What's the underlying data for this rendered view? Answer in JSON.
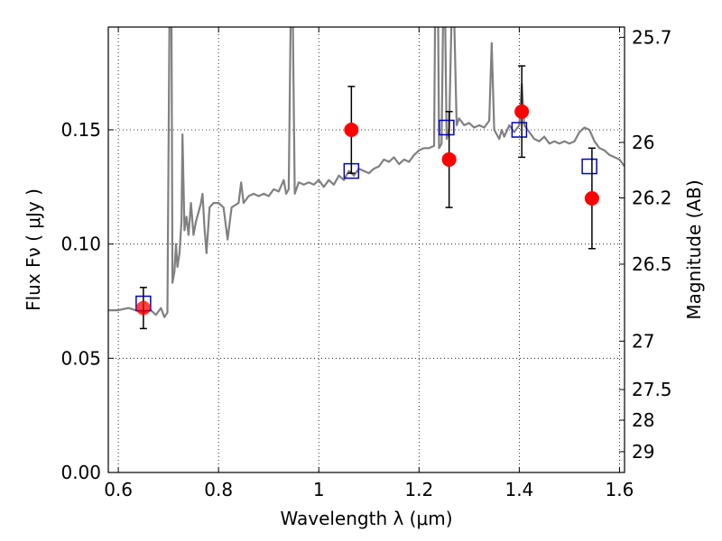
{
  "chart_data": {
    "type": "scatter",
    "xlabel": "Wavelength  λ (μm)",
    "ylabel": "Flux  Fν  ( μJy )",
    "ylabel_right": "Magnitude (AB)",
    "xlim": [
      0.58,
      1.61
    ],
    "ylim": [
      0.0,
      0.195
    ],
    "grid": true,
    "grid_style": "dotted",
    "x_ticks": [
      {
        "value": 0.6,
        "label": "0.6"
      },
      {
        "value": 0.8,
        "label": "0.8"
      },
      {
        "value": 1.0,
        "label": "1"
      },
      {
        "value": 1.2,
        "label": "1.2"
      },
      {
        "value": 1.4,
        "label": "1.4"
      },
      {
        "value": 1.6,
        "label": "1.6"
      }
    ],
    "y_ticks": [
      {
        "value": 0.0,
        "label": "0.00"
      },
      {
        "value": 0.05,
        "label": "0.05"
      },
      {
        "value": 0.1,
        "label": "0.10"
      },
      {
        "value": 0.15,
        "label": "0.15"
      }
    ],
    "right_ticks": [
      {
        "flux": 0.1905,
        "label": "25.7"
      },
      {
        "flux": 0.1445,
        "label": "26"
      },
      {
        "flux": 0.1202,
        "label": "26.2"
      },
      {
        "flux": 0.0912,
        "label": "26.5"
      },
      {
        "flux": 0.0575,
        "label": "27"
      },
      {
        "flux": 0.0363,
        "label": "27.5"
      },
      {
        "flux": 0.0229,
        "label": "28"
      },
      {
        "flux": 0.0091,
        "label": "29"
      }
    ],
    "series": [
      {
        "kind": "model_spectrum",
        "color": "#808080",
        "points": [
          [
            0.58,
            0.071
          ],
          [
            0.6,
            0.071
          ],
          [
            0.62,
            0.072
          ],
          [
            0.635,
            0.071
          ],
          [
            0.65,
            0.07
          ],
          [
            0.665,
            0.071
          ],
          [
            0.675,
            0.069
          ],
          [
            0.685,
            0.072
          ],
          [
            0.692,
            0.068
          ],
          [
            0.698,
            0.07
          ],
          [
            0.702,
            0.2
          ],
          [
            0.706,
            0.2
          ],
          [
            0.708,
            0.083
          ],
          [
            0.712,
            0.088
          ],
          [
            0.715,
            0.1
          ],
          [
            0.718,
            0.09
          ],
          [
            0.722,
            0.096
          ],
          [
            0.726,
            0.11
          ],
          [
            0.728,
            0.148
          ],
          [
            0.732,
            0.106
          ],
          [
            0.736,
            0.112
          ],
          [
            0.74,
            0.104
          ],
          [
            0.745,
            0.118
          ],
          [
            0.75,
            0.104
          ],
          [
            0.755,
            0.11
          ],
          [
            0.76,
            0.114
          ],
          [
            0.765,
            0.118
          ],
          [
            0.768,
            0.122
          ],
          [
            0.772,
            0.107
          ],
          [
            0.776,
            0.096
          ],
          [
            0.782,
            0.116
          ],
          [
            0.79,
            0.118
          ],
          [
            0.8,
            0.118
          ],
          [
            0.81,
            0.116
          ],
          [
            0.818,
            0.102
          ],
          [
            0.826,
            0.116
          ],
          [
            0.84,
            0.118
          ],
          [
            0.845,
            0.127
          ],
          [
            0.85,
            0.118
          ],
          [
            0.86,
            0.121
          ],
          [
            0.87,
            0.122
          ],
          [
            0.88,
            0.121
          ],
          [
            0.89,
            0.122
          ],
          [
            0.9,
            0.121
          ],
          [
            0.91,
            0.124
          ],
          [
            0.92,
            0.123
          ],
          [
            0.93,
            0.128
          ],
          [
            0.935,
            0.122
          ],
          [
            0.94,
            0.124
          ],
          [
            0.944,
            0.2
          ],
          [
            0.948,
            0.2
          ],
          [
            0.952,
            0.122
          ],
          [
            0.96,
            0.127
          ],
          [
            0.97,
            0.126
          ],
          [
            0.98,
            0.127
          ],
          [
            0.99,
            0.126
          ],
          [
            1.0,
            0.128
          ],
          [
            1.01,
            0.125
          ],
          [
            1.02,
            0.128
          ],
          [
            1.03,
            0.126
          ],
          [
            1.04,
            0.13
          ],
          [
            1.05,
            0.128
          ],
          [
            1.06,
            0.132
          ],
          [
            1.07,
            0.13
          ],
          [
            1.08,
            0.133
          ],
          [
            1.09,
            0.132
          ],
          [
            1.1,
            0.131
          ],
          [
            1.11,
            0.133
          ],
          [
            1.12,
            0.134
          ],
          [
            1.13,
            0.137
          ],
          [
            1.14,
            0.136
          ],
          [
            1.15,
            0.138
          ],
          [
            1.16,
            0.135
          ],
          [
            1.17,
            0.137
          ],
          [
            1.18,
            0.136
          ],
          [
            1.19,
            0.139
          ],
          [
            1.2,
            0.141
          ],
          [
            1.21,
            0.142
          ],
          [
            1.22,
            0.142
          ],
          [
            1.23,
            0.143
          ],
          [
            1.232,
            0.2
          ],
          [
            1.238,
            0.2
          ],
          [
            1.24,
            0.142
          ],
          [
            1.245,
            0.144
          ],
          [
            1.248,
            0.2
          ],
          [
            1.252,
            0.2
          ],
          [
            1.255,
            0.146
          ],
          [
            1.26,
            0.15
          ],
          [
            1.265,
            0.2
          ],
          [
            1.27,
            0.2
          ],
          [
            1.275,
            0.152
          ],
          [
            1.28,
            0.155
          ],
          [
            1.29,
            0.152
          ],
          [
            1.3,
            0.153
          ],
          [
            1.31,
            0.151
          ],
          [
            1.32,
            0.152
          ],
          [
            1.33,
            0.151
          ],
          [
            1.34,
            0.154
          ],
          [
            1.345,
            0.188
          ],
          [
            1.35,
            0.15
          ],
          [
            1.36,
            0.146
          ],
          [
            1.365,
            0.15
          ],
          [
            1.37,
            0.147
          ],
          [
            1.38,
            0.152
          ],
          [
            1.39,
            0.149
          ],
          [
            1.4,
            0.152
          ],
          [
            1.405,
            0.17
          ],
          [
            1.41,
            0.152
          ],
          [
            1.42,
            0.149
          ],
          [
            1.43,
            0.146
          ],
          [
            1.44,
            0.145
          ],
          [
            1.45,
            0.147
          ],
          [
            1.46,
            0.144
          ],
          [
            1.47,
            0.145
          ],
          [
            1.48,
            0.144
          ],
          [
            1.49,
            0.145
          ],
          [
            1.5,
            0.144
          ],
          [
            1.51,
            0.145
          ],
          [
            1.52,
            0.149
          ],
          [
            1.53,
            0.151
          ],
          [
            1.54,
            0.15
          ],
          [
            1.55,
            0.145
          ],
          [
            1.56,
            0.142
          ],
          [
            1.57,
            0.141
          ],
          [
            1.58,
            0.139
          ],
          [
            1.59,
            0.138
          ],
          [
            1.6,
            0.137
          ],
          [
            1.61,
            0.134
          ]
        ]
      },
      {
        "kind": "model_photometry",
        "marker": "open-square",
        "color": "#0000cc",
        "points": [
          [
            0.65,
            0.074
          ],
          [
            1.065,
            0.132
          ],
          [
            1.255,
            0.151
          ],
          [
            1.4,
            0.15
          ],
          [
            1.54,
            0.134
          ]
        ]
      },
      {
        "kind": "observed_photometry",
        "marker": "filled-circle",
        "color": "#ff0000",
        "points": [
          {
            "x": 0.65,
            "y": 0.072,
            "err": 0.009
          },
          {
            "x": 1.065,
            "y": 0.15,
            "err": 0.019
          },
          {
            "x": 1.26,
            "y": 0.137,
            "err": 0.021
          },
          {
            "x": 1.405,
            "y": 0.158,
            "err": 0.02
          },
          {
            "x": 1.545,
            "y": 0.12,
            "err": 0.022
          }
        ]
      }
    ]
  }
}
